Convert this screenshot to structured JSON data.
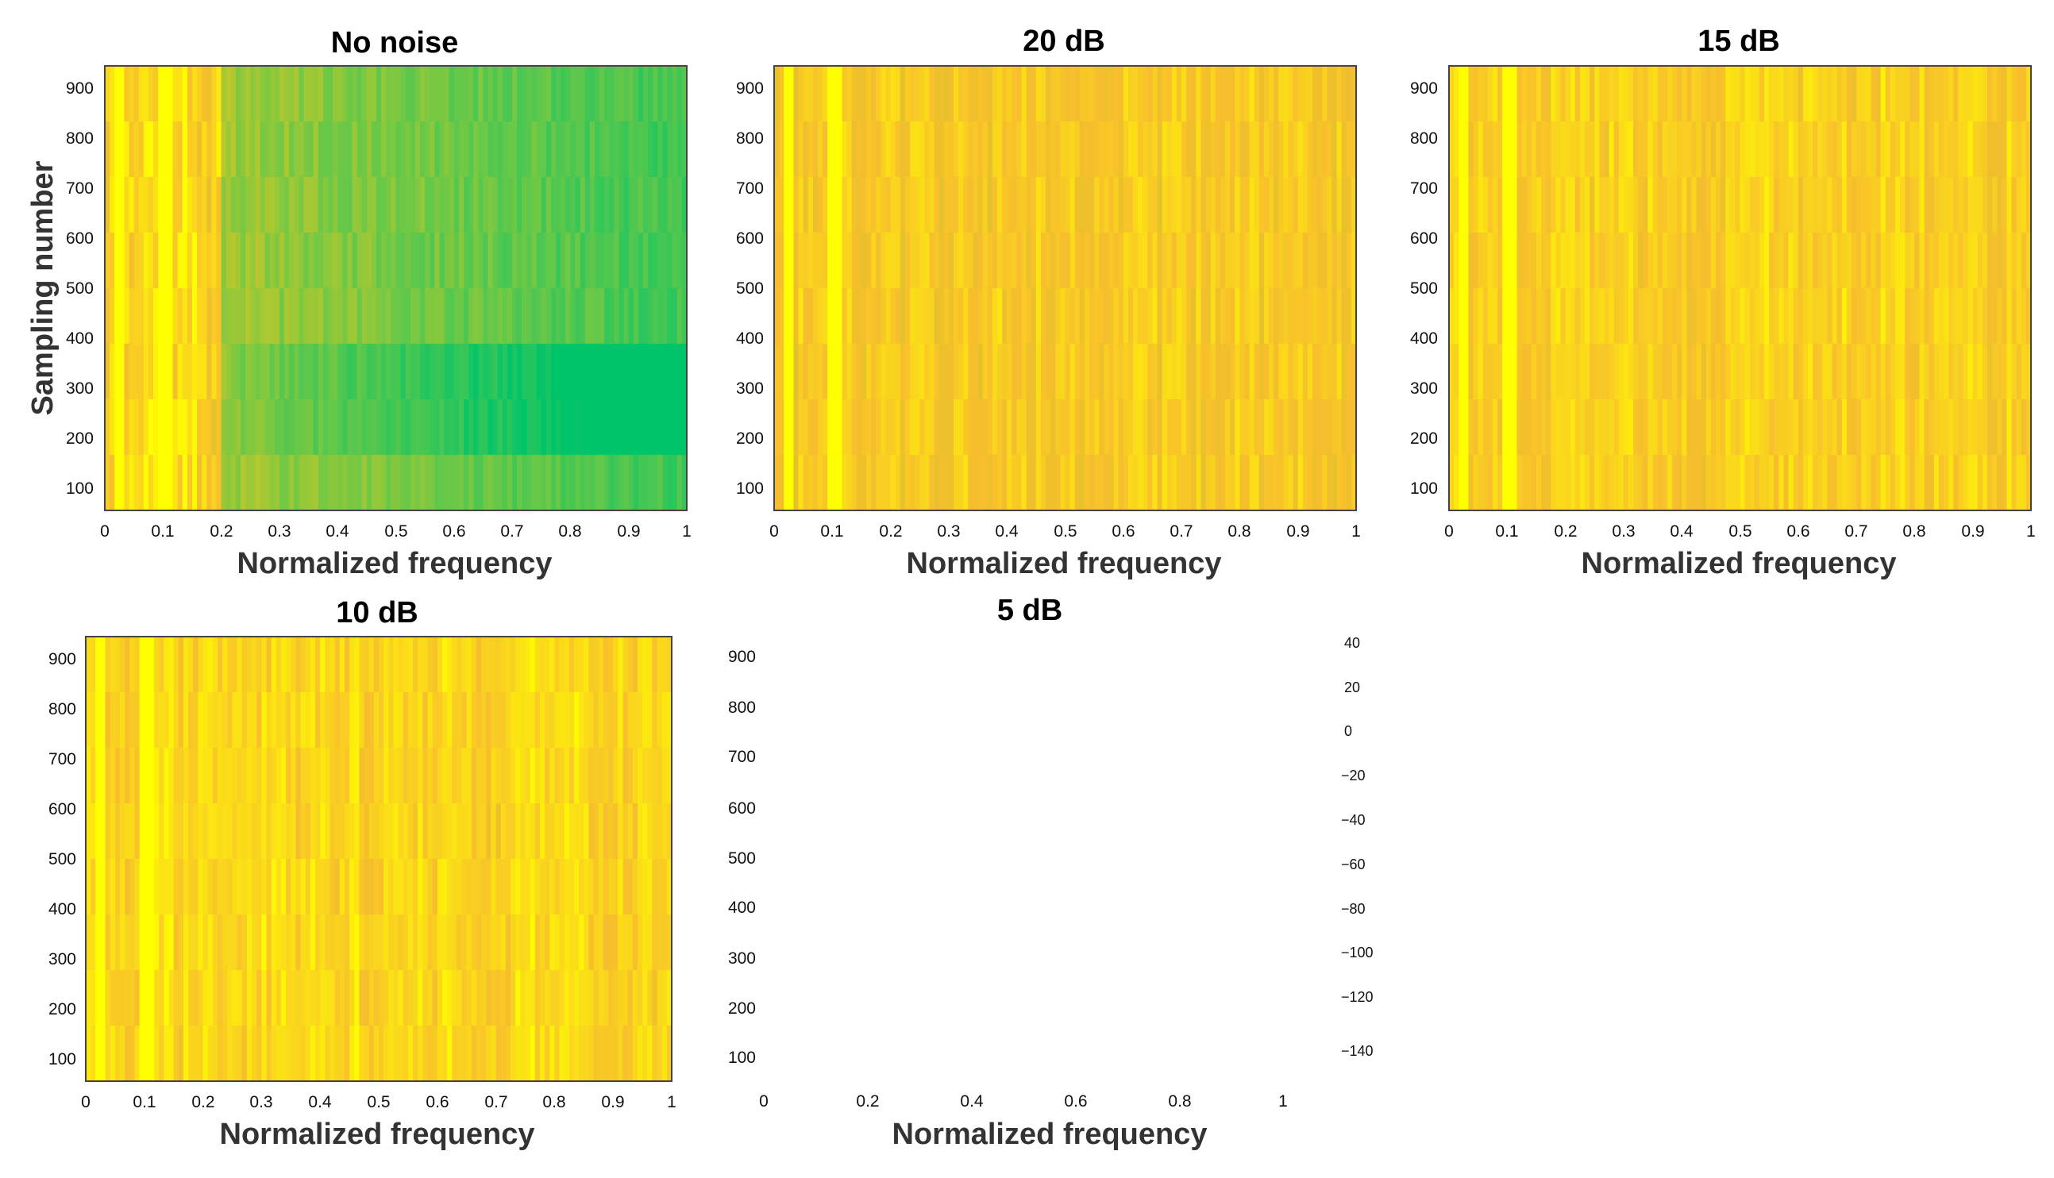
{
  "chart_data": [
    {
      "type": "heatmap",
      "title": "No noise",
      "xlabel": "Normalized frequency",
      "ylabel": "Sampling number",
      "xticks": [
        "0",
        "0.1",
        "0.2",
        "0.3",
        "0.4",
        "0.5",
        "0.6",
        "0.7",
        "0.8",
        "0.9",
        "1"
      ],
      "yticks": [
        "100",
        "200",
        "300",
        "400",
        "500",
        "600",
        "700",
        "800",
        "900"
      ],
      "xlim": [
        0,
        1
      ],
      "ylim": [
        60,
        950
      ],
      "colormap": "parula",
      "color_level_mean": 0.42
    },
    {
      "type": "heatmap",
      "title": "20 dB",
      "xlabel": "Normalized frequency",
      "ylabel": "",
      "xticks": [
        "0",
        "0.1",
        "0.2",
        "0.3",
        "0.4",
        "0.5",
        "0.6",
        "0.7",
        "0.8",
        "0.9",
        "1"
      ],
      "yticks": [
        "100",
        "200",
        "300",
        "400",
        "500",
        "600",
        "700",
        "800",
        "900"
      ],
      "xlim": [
        0,
        1
      ],
      "ylim": [
        60,
        950
      ],
      "colormap": "parula",
      "color_level_mean": 0.82
    },
    {
      "type": "heatmap",
      "title": "15 dB",
      "xlabel": "Normalized frequency",
      "ylabel": "",
      "xticks": [
        "0",
        "0.1",
        "0.2",
        "0.3",
        "0.4",
        "0.5",
        "0.6",
        "0.7",
        "0.8",
        "0.9",
        "1"
      ],
      "yticks": [
        "100",
        "200",
        "300",
        "400",
        "500",
        "600",
        "700",
        "800",
        "900"
      ],
      "xlim": [
        0,
        1
      ],
      "ylim": [
        60,
        950
      ],
      "colormap": "parula",
      "color_level_mean": 0.85
    },
    {
      "type": "heatmap",
      "title": "10 dB",
      "xlabel": "Normalized frequency",
      "ylabel": "",
      "xticks": [
        "0",
        "0.1",
        "0.2",
        "0.3",
        "0.4",
        "0.5",
        "0.6",
        "0.7",
        "0.8",
        "0.9",
        "1"
      ],
      "yticks": [
        "100",
        "200",
        "300",
        "400",
        "500",
        "600",
        "700",
        "800",
        "900"
      ],
      "xlim": [
        0,
        1
      ],
      "ylim": [
        60,
        950
      ],
      "colormap": "parula",
      "color_level_mean": 0.88
    },
    {
      "type": "heatmap",
      "title": "5 dB",
      "xlabel": "Normalized frequency",
      "ylabel": "",
      "xticks": [
        "0",
        "0.2",
        "0.4",
        "0.6",
        "0.8",
        "1"
      ],
      "yticks": [
        "100",
        "200",
        "300",
        "400",
        "500",
        "600",
        "700",
        "800",
        "900"
      ],
      "xlim": [
        0,
        1
      ],
      "ylim": [
        60,
        950
      ],
      "empty": true,
      "colorbar_ticks": [
        "40",
        "20",
        "0",
        "−20",
        "−40",
        "−60",
        "−80",
        "−100",
        "−120",
        "−140"
      ]
    }
  ],
  "colors": {
    "low": "#00c46a",
    "mid": "#a8c83a",
    "high": "#f7c52a",
    "peak": "#ffff00"
  }
}
